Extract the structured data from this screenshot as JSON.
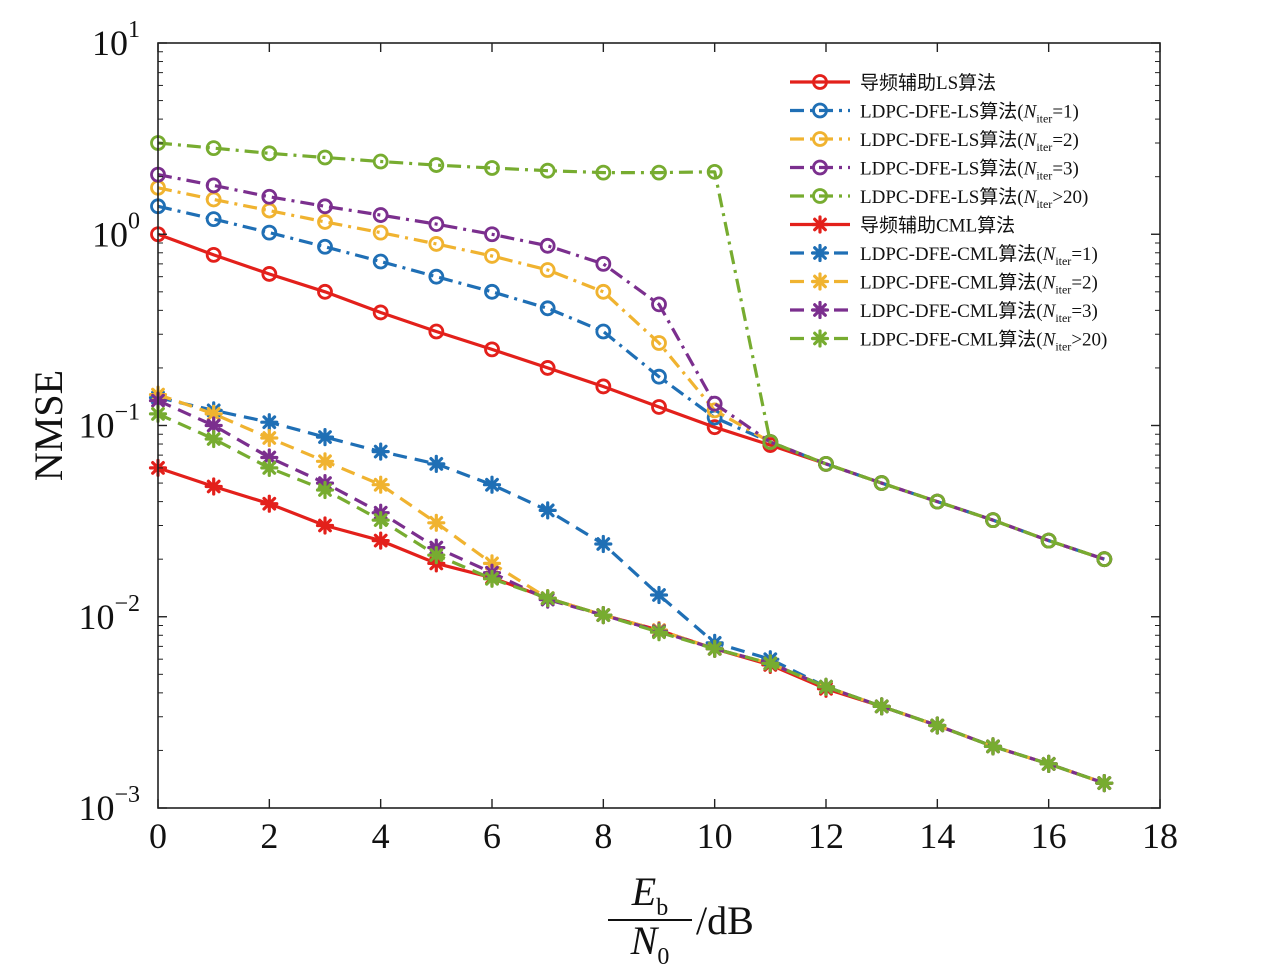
{
  "chart_data": {
    "type": "line",
    "title": "",
    "xlabel": {
      "main": "E",
      "main_sub": "b",
      "den": "N",
      "den_sub": "0",
      "unit": "/dB"
    },
    "ylabel": "NMSE",
    "xlim": [
      0,
      18
    ],
    "ylim": [
      0.001,
      10
    ],
    "yscale": "log",
    "xticks": [
      "0",
      "2",
      "4",
      "6",
      "8",
      "10",
      "12",
      "14",
      "16",
      "18"
    ],
    "yticks": [
      {
        "base": "10",
        "exp": "1"
      },
      {
        "base": "10",
        "exp": "0"
      },
      {
        "base": "10",
        "exp": "−1"
      },
      {
        "base": "10",
        "exp": "−2"
      },
      {
        "base": "10",
        "exp": "−3"
      }
    ],
    "grid": false,
    "legend_position": "top-right",
    "series": [
      {
        "name": "导频辅助LS算法",
        "color": "#e3201b",
        "dash": "solid",
        "marker": "circle",
        "x": [
          0,
          1,
          2,
          3,
          4,
          5,
          6,
          7,
          8,
          9,
          10,
          11,
          12,
          13,
          14,
          15,
          16,
          17
        ],
        "y": [
          1.0,
          0.78,
          0.62,
          0.5,
          0.39,
          0.31,
          0.25,
          0.2,
          0.16,
          0.125,
          0.098,
          0.079,
          0.063,
          0.05,
          0.04,
          0.032,
          0.025,
          0.02
        ]
      },
      {
        "name": "LDPC-DFE-LS算法(N",
        "name_sub": "iter",
        "name_tail": "=1)",
        "color": "#1f6fb5",
        "dash": "dashdot",
        "marker": "circle",
        "x": [
          0,
          1,
          2,
          3,
          4,
          5,
          6,
          7,
          8,
          9,
          10,
          11,
          12,
          13,
          14,
          15,
          16,
          17
        ],
        "y": [
          1.4,
          1.2,
          1.02,
          0.86,
          0.72,
          0.6,
          0.5,
          0.41,
          0.31,
          0.18,
          0.11,
          0.082,
          0.063,
          0.05,
          0.04,
          0.032,
          0.025,
          0.02
        ]
      },
      {
        "name": "LDPC-DFE-LS算法(N",
        "name_sub": "iter",
        "name_tail": "=2)",
        "color": "#f0b330",
        "dash": "dashdot",
        "marker": "circle",
        "x": [
          0,
          1,
          2,
          3,
          4,
          5,
          6,
          7,
          8,
          9,
          10,
          11,
          12,
          13,
          14,
          15,
          16,
          17
        ],
        "y": [
          1.75,
          1.52,
          1.33,
          1.16,
          1.02,
          0.89,
          0.77,
          0.65,
          0.5,
          0.27,
          0.12,
          0.082,
          0.063,
          0.05,
          0.04,
          0.032,
          0.025,
          0.02
        ]
      },
      {
        "name": "LDPC-DFE-LS算法(N",
        "name_sub": "iter",
        "name_tail": "=3)",
        "color": "#7b2f8e",
        "dash": "dashdot",
        "marker": "circle",
        "x": [
          0,
          1,
          2,
          3,
          4,
          5,
          6,
          7,
          8,
          9,
          10,
          11,
          12,
          13,
          14,
          15,
          16,
          17
        ],
        "y": [
          2.05,
          1.8,
          1.57,
          1.4,
          1.26,
          1.13,
          1.0,
          0.87,
          0.7,
          0.43,
          0.13,
          0.082,
          0.063,
          0.05,
          0.04,
          0.032,
          0.025,
          0.02
        ]
      },
      {
        "name": "LDPC-DFE-LS算法(N",
        "name_sub": "iter",
        "name_tail": ">20)",
        "color": "#77ac30",
        "dash": "dashdot",
        "marker": "circle",
        "x": [
          0,
          1,
          2,
          3,
          4,
          5,
          6,
          7,
          8,
          9,
          10,
          11,
          12,
          13,
          14,
          15,
          16,
          17
        ],
        "y": [
          3.0,
          2.82,
          2.65,
          2.52,
          2.4,
          2.3,
          2.22,
          2.15,
          2.1,
          2.1,
          2.12,
          0.082,
          0.063,
          0.05,
          0.04,
          0.032,
          0.025,
          0.02
        ]
      },
      {
        "name": "导频辅助CML算法",
        "color": "#e3201b",
        "dash": "solid",
        "marker": "star",
        "x": [
          0,
          1,
          2,
          3,
          4,
          5,
          6,
          7,
          8,
          9,
          10,
          11,
          12,
          13,
          14,
          15,
          16,
          17
        ],
        "y": [
          0.06,
          0.048,
          0.039,
          0.03,
          0.025,
          0.019,
          0.016,
          0.0125,
          0.0102,
          0.0085,
          0.0068,
          0.0056,
          0.0042,
          0.0034,
          0.0027,
          0.0021,
          0.0017,
          0.00135
        ]
      },
      {
        "name": "LDPC-DFE-CML算法(N",
        "name_sub": "iter",
        "name_tail": "=1)",
        "color": "#1f6fb5",
        "dash": "dashed",
        "marker": "star",
        "x": [
          0,
          1,
          2,
          3,
          4,
          5,
          6,
          7,
          8,
          9,
          10,
          11,
          12,
          13,
          14,
          15,
          16,
          17
        ],
        "y": [
          0.14,
          0.12,
          0.104,
          0.087,
          0.073,
          0.063,
          0.049,
          0.036,
          0.024,
          0.013,
          0.0073,
          0.006,
          0.0043,
          0.0034,
          0.0027,
          0.0021,
          0.0017,
          0.00135
        ]
      },
      {
        "name": "LDPC-DFE-CML算法(N",
        "name_sub": "iter",
        "name_tail": "=2)",
        "color": "#f0b330",
        "dash": "dashed",
        "marker": "star",
        "x": [
          0,
          1,
          2,
          3,
          4,
          5,
          6,
          7,
          8,
          9,
          10,
          11,
          12,
          13,
          14,
          15,
          16,
          17
        ],
        "y": [
          0.145,
          0.115,
          0.086,
          0.065,
          0.049,
          0.031,
          0.019,
          0.0125,
          0.0102,
          0.0085,
          0.0068,
          0.0057,
          0.0043,
          0.0034,
          0.0027,
          0.0021,
          0.0017,
          0.00135
        ]
      },
      {
        "name": "LDPC-DFE-CML算法(N",
        "name_sub": "iter",
        "name_tail": "=3)",
        "color": "#7b2f8e",
        "dash": "dashed",
        "marker": "star",
        "x": [
          0,
          1,
          2,
          3,
          4,
          5,
          6,
          7,
          8,
          9,
          10,
          11,
          12,
          13,
          14,
          15,
          16,
          17
        ],
        "y": [
          0.135,
          0.1,
          0.068,
          0.05,
          0.035,
          0.023,
          0.017,
          0.0123,
          0.0102,
          0.0084,
          0.0068,
          0.0057,
          0.0043,
          0.0034,
          0.0027,
          0.0021,
          0.0017,
          0.00135
        ]
      },
      {
        "name": "LDPC-DFE-CML算法(N",
        "name_sub": "iter",
        "name_tail": ">20)",
        "color": "#77ac30",
        "dash": "dashed",
        "marker": "star",
        "x": [
          0,
          1,
          2,
          3,
          4,
          5,
          6,
          7,
          8,
          9,
          10,
          11,
          12,
          13,
          14,
          15,
          16,
          17
        ],
        "y": [
          0.115,
          0.085,
          0.06,
          0.046,
          0.032,
          0.021,
          0.0158,
          0.0125,
          0.0102,
          0.0083,
          0.0068,
          0.0057,
          0.0043,
          0.0034,
          0.0027,
          0.0021,
          0.0017,
          0.00135
        ]
      }
    ]
  }
}
